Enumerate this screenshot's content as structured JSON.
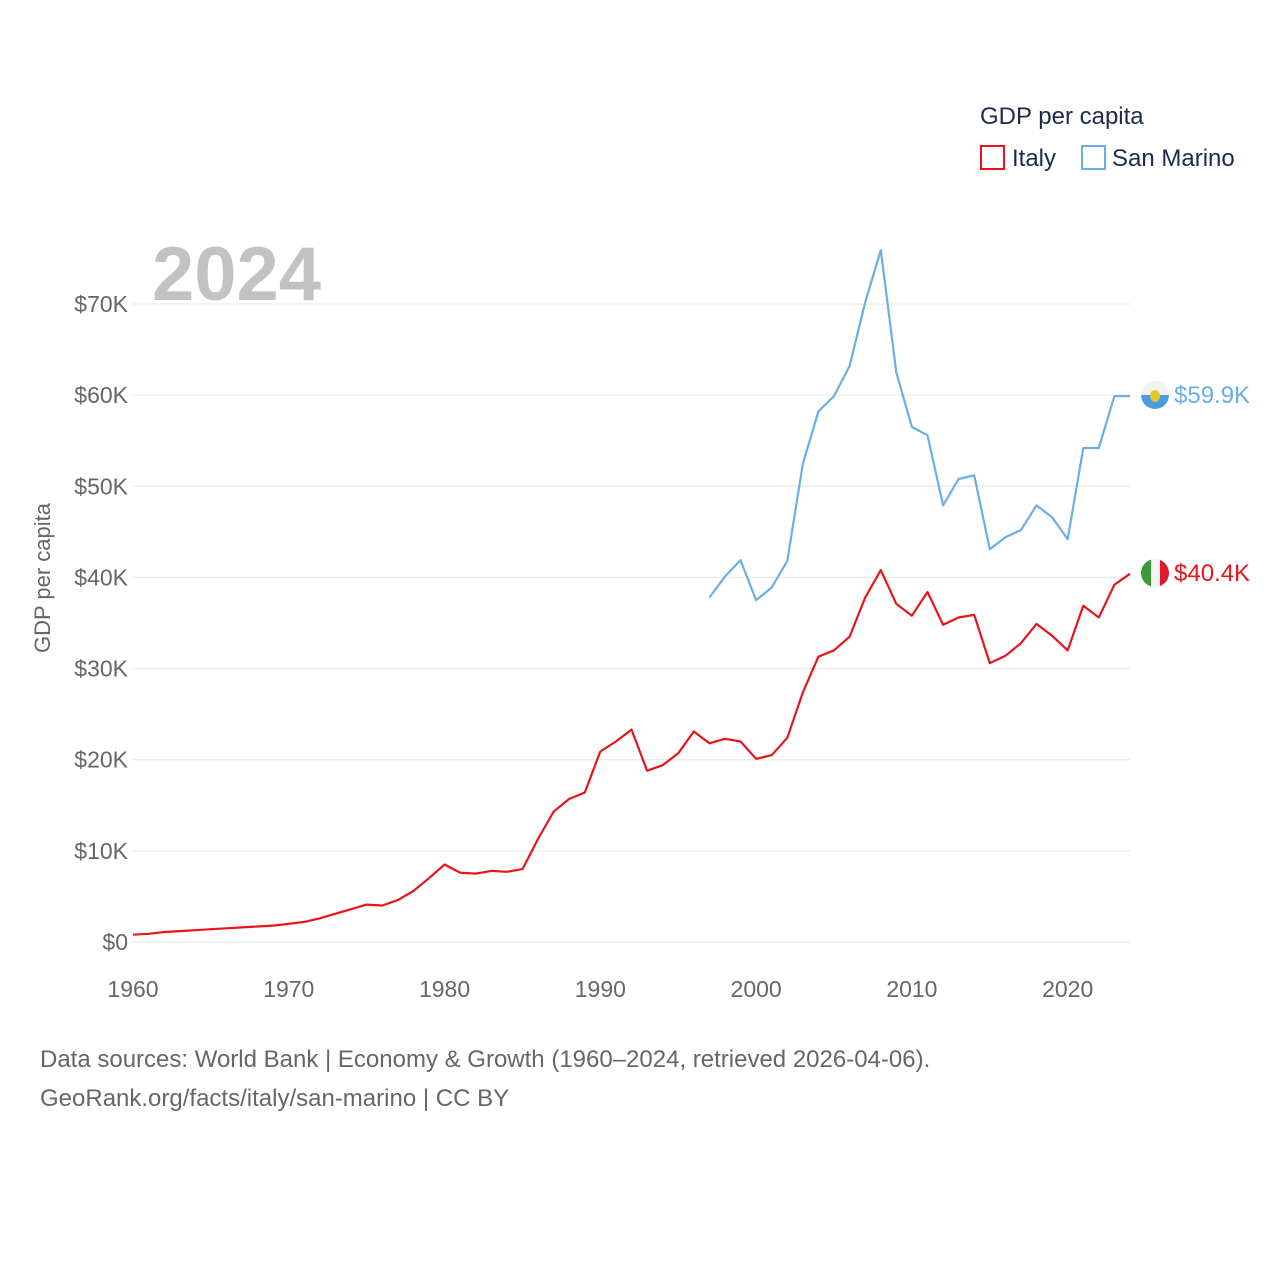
{
  "colors": {
    "italy": "#e8141c",
    "san_marino": "#6aaee8",
    "grid": "#e6e6e6",
    "text": "#666666",
    "year": "#c2c2c2"
  },
  "year_label": "2024",
  "legend": {
    "title": "GDP per capita",
    "items": [
      {
        "label": "Italy",
        "color": "#e8141c"
      },
      {
        "label": "San Marino",
        "color": "#6aaee8"
      }
    ]
  },
  "end_labels": {
    "italy": "$40.4K",
    "san_marino": "$59.9K"
  },
  "footer": {
    "line1": "Data sources: World Bank | Economy & Growth (1960–2024, retrieved 2026-04-06).",
    "line2_link": "GeoRank.org/facts/italy/san-marino",
    "line2_license": " | CC BY"
  },
  "chart_data": {
    "type": "line",
    "title": "GDP per capita",
    "xlabel": "",
    "ylabel": "GDP per capita",
    "xlim": [
      1960,
      2024
    ],
    "ylim": [
      0,
      70000
    ],
    "x_ticks": [
      1960,
      1970,
      1980,
      1990,
      2000,
      2010,
      2020
    ],
    "x_tick_labels": [
      "1960",
      "1970",
      "1980",
      "1990",
      "2000",
      "2010",
      "2020"
    ],
    "y_ticks": [
      0,
      10000,
      20000,
      30000,
      40000,
      50000,
      60000,
      70000
    ],
    "y_tick_labels": [
      "$0",
      "$10K",
      "$20K",
      "$30K",
      "$40K",
      "$50K",
      "$60K",
      "$70K"
    ],
    "grid": true,
    "legend_position": "top-right",
    "series": [
      {
        "name": "Italy",
        "x": [
          1960,
          1961,
          1962,
          1963,
          1964,
          1965,
          1966,
          1967,
          1968,
          1969,
          1970,
          1971,
          1972,
          1973,
          1974,
          1975,
          1976,
          1977,
          1978,
          1979,
          1980,
          1981,
          1982,
          1983,
          1984,
          1985,
          1986,
          1987,
          1988,
          1989,
          1990,
          1991,
          1992,
          1993,
          1994,
          1995,
          1996,
          1997,
          1998,
          1999,
          2000,
          2001,
          2002,
          2003,
          2004,
          2005,
          2006,
          2007,
          2008,
          2009,
          2010,
          2011,
          2012,
          2013,
          2014,
          2015,
          2016,
          2017,
          2018,
          2019,
          2020,
          2021,
          2022,
          2023,
          2024
        ],
        "values": [
          800,
          900,
          1100,
          1200,
          1300,
          1400,
          1500,
          1600,
          1700,
          1800,
          2000,
          2200,
          2600,
          3100,
          3600,
          4100,
          4000,
          4600,
          5600,
          7000,
          8500,
          7600,
          7500,
          7800,
          7700,
          8000,
          11300,
          14300,
          15700,
          16400,
          20900,
          22000,
          23300,
          18800,
          19400,
          20700,
          23100,
          21800,
          22300,
          22000,
          20100,
          20500,
          22400,
          27400,
          31300,
          32000,
          33500,
          37800,
          40800,
          37100,
          35800,
          38400,
          34800,
          35600,
          35900,
          30600,
          31400,
          32800,
          34900,
          33600,
          32000,
          36900,
          35600,
          39200,
          40400
        ]
      },
      {
        "name": "San Marino",
        "x": [
          1997,
          1998,
          1999,
          2000,
          2001,
          2002,
          2003,
          2004,
          2005,
          2006,
          2007,
          2008,
          2009,
          2010,
          2011,
          2012,
          2013,
          2014,
          2015,
          2016,
          2017,
          2018,
          2019,
          2020,
          2021,
          2022,
          2023,
          2024
        ],
        "values": [
          37800,
          40100,
          41900,
          37500,
          38900,
          41800,
          52500,
          58200,
          59900,
          63200,
          70200,
          75900,
          62500,
          56500,
          55600,
          47900,
          50800,
          51200,
          43100,
          44400,
          45200,
          47900,
          46600,
          44200,
          54200,
          54200,
          59900,
          59900
        ]
      }
    ]
  }
}
